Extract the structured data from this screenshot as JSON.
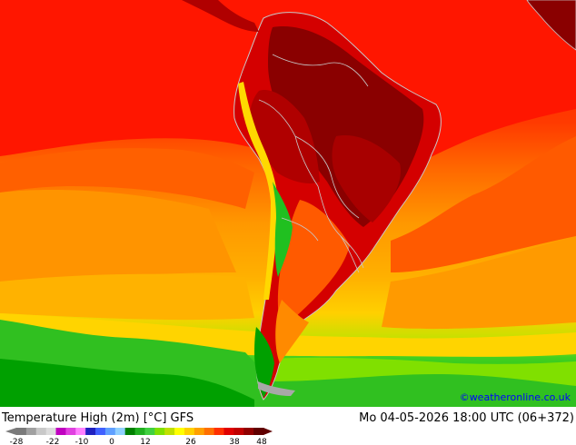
{
  "title": "Temperature High (2m) [°C] GFS",
  "valid_time": "Mo 04-05-2026 18:00 UTC (06+372)",
  "credit": "©weatheronline.co.uk",
  "colorbar": {
    "ticks": [
      "-28",
      "-22",
      "-10",
      "0",
      "12",
      "26",
      "38",
      "48"
    ],
    "colors": [
      "#7a7a7a",
      "#a0a0a0",
      "#c8c8c8",
      "#dcdcdc",
      "#c000c0",
      "#e040e0",
      "#ff80ff",
      "#2020c0",
      "#4060ff",
      "#60a0ff",
      "#90d0ff",
      "#008000",
      "#20b020",
      "#40d040",
      "#80e000",
      "#c0e000",
      "#ffff00",
      "#ffd000",
      "#ffa000",
      "#ff7000",
      "#ff3000",
      "#e00000",
      "#c00000",
      "#900000",
      "#600000"
    ]
  },
  "colors": {
    "hot": "#b00000",
    "very_hot": "#8a0000",
    "red": "#ff1a00",
    "orange_red": "#ff5a00",
    "orange": "#ff9000",
    "yellow_orange": "#ffb400",
    "yellow": "#ffd800",
    "green_light": "#6ee000",
    "green": "#20c020",
    "green_dark": "#00a000",
    "border": "#c8c8c8"
  }
}
